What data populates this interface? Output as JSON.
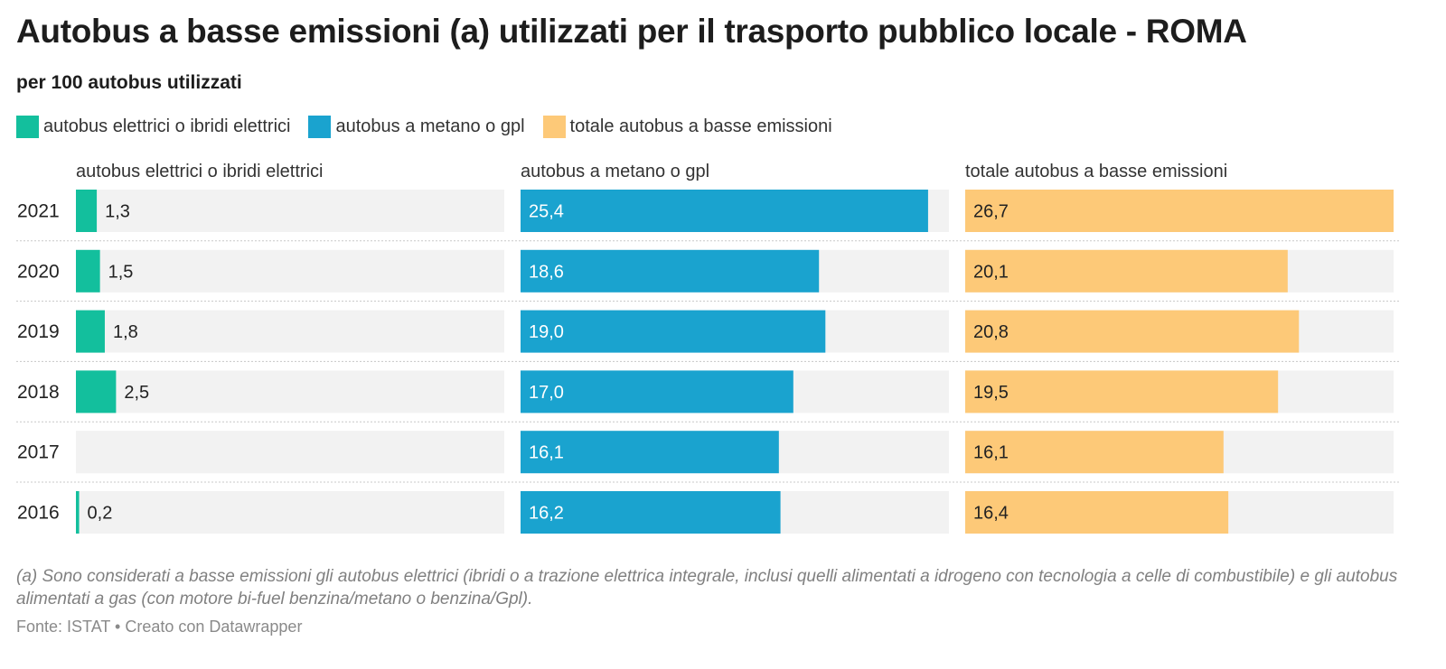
{
  "title": "Autobus a basse emissioni (a) utilizzati per il trasporto pubblico locale - ROMA",
  "subtitle": "per 100 autobus utilizzati",
  "note": "(a) Sono considerati a basse emissioni gli autobus elettrici (ibridi o a trazione elettrica integrale, inclusi quelli alimentati a idrogeno con tecnologia a celle di combustibile) e gli autobus alimentati a gas (con motore bi-fuel benzina/metano o benzina/Gpl).",
  "source": "Fonte: ISTAT • Creato con Datawrapper",
  "chart_data": {
    "type": "bar",
    "orientation": "horizontal",
    "layout": "small-multiples",
    "categories": [
      "2021",
      "2020",
      "2019",
      "2018",
      "2017",
      "2016"
    ],
    "xlim": [
      0,
      26.7
    ],
    "series": [
      {
        "name": "autobus elettrici o ibridi elettrici",
        "color": "#13bf9d",
        "values": [
          1.3,
          1.5,
          1.8,
          2.5,
          null,
          0.2
        ],
        "labels": [
          "1,3",
          "1,5",
          "1,8",
          "2,5",
          "",
          "0,2"
        ]
      },
      {
        "name": "autobus a metano o gpl",
        "color": "#1aa3cf",
        "values": [
          25.4,
          18.6,
          19.0,
          17.0,
          16.1,
          16.2
        ],
        "labels": [
          "25,4",
          "18,6",
          "19,0",
          "17,0",
          "16,1",
          "16,2"
        ]
      },
      {
        "name": "totale autobus a basse emissioni",
        "color": "#fdc978",
        "values": [
          26.7,
          20.1,
          20.8,
          19.5,
          16.1,
          16.4
        ],
        "labels": [
          "26,7",
          "20,1",
          "20,8",
          "19,5",
          "16,1",
          "16,4"
        ]
      }
    ],
    "legend": {
      "position": "top-left"
    },
    "track_color": "#f2f2f2"
  }
}
